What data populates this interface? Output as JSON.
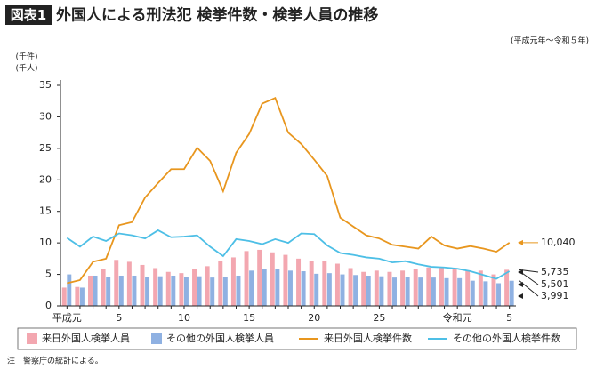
{
  "chart_data": {
    "type": "bar",
    "tag": "図表1",
    "title": "外国人による刑法犯 検挙件数・検挙人員の推移",
    "subtitle": "(平成元年～令和５年)",
    "y_label_lines": [
      "(千件)",
      "(千人)"
    ],
    "note": "注　警察庁の統計による。",
    "categories": [
      "平成元",
      null,
      null,
      null,
      "5",
      null,
      null,
      null,
      null,
      "10",
      null,
      null,
      null,
      null,
      "15",
      null,
      null,
      null,
      null,
      "20",
      null,
      null,
      null,
      null,
      "25",
      null,
      null,
      null,
      null,
      null,
      "令和元",
      null,
      null,
      null,
      "5"
    ],
    "ylim": [
      0,
      35
    ],
    "yticks": [
      0,
      5,
      10,
      15,
      20,
      25,
      30,
      35
    ],
    "grid": false,
    "legend": "bottom",
    "series": [
      {
        "name": "来日外国人検挙人員",
        "type": "bar",
        "color": "#f3a7b0",
        "values": [
          2.9,
          3.0,
          4.8,
          5.9,
          7.3,
          7.0,
          6.5,
          6.0,
          5.4,
          5.2,
          5.9,
          6.3,
          7.2,
          7.7,
          8.7,
          8.9,
          8.5,
          8.1,
          7.5,
          7.1,
          7.2,
          6.7,
          6.0,
          5.4,
          5.6,
          5.4,
          5.6,
          5.8,
          6.1,
          6.0,
          6.0,
          5.6,
          5.6,
          5.0,
          5.735
        ],
        "value_labels": [
          null,
          null,
          null,
          null,
          null,
          null,
          null,
          null,
          null,
          null,
          null,
          null,
          null,
          null,
          null,
          null,
          null,
          null,
          null,
          null,
          null,
          null,
          null,
          null,
          null,
          null,
          null,
          null,
          null,
          null,
          null,
          null,
          null,
          null,
          "5,735"
        ]
      },
      {
        "name": "その他の外国人検挙人員",
        "type": "bar",
        "color": "#8fb1e2",
        "values": [
          5.0,
          2.9,
          4.8,
          4.6,
          4.8,
          4.8,
          4.6,
          4.7,
          4.8,
          4.6,
          4.7,
          4.5,
          4.6,
          4.8,
          5.6,
          5.9,
          5.8,
          5.6,
          5.5,
          5.1,
          5.2,
          5.0,
          4.9,
          4.8,
          4.7,
          4.5,
          4.6,
          4.5,
          4.5,
          4.4,
          4.4,
          4.0,
          3.9,
          3.6,
          3.991
        ],
        "value_labels": [
          null,
          null,
          null,
          null,
          null,
          null,
          null,
          null,
          null,
          null,
          null,
          null,
          null,
          null,
          null,
          null,
          null,
          null,
          null,
          null,
          null,
          null,
          null,
          null,
          null,
          null,
          null,
          null,
          null,
          null,
          null,
          null,
          null,
          null,
          "3,991"
        ]
      },
      {
        "name": "来日外国人検挙件数",
        "type": "line",
        "color": "#e8961e",
        "values": [
          3.6,
          4.1,
          7.0,
          7.5,
          12.8,
          13.3,
          17.2,
          19.5,
          21.7,
          21.7,
          25.1,
          23.0,
          18.2,
          24.3,
          27.3,
          32.1,
          33.0,
          27.5,
          25.7,
          23.2,
          20.6,
          14.0,
          12.6,
          11.2,
          10.7,
          9.7,
          9.4,
          9.1,
          11.0,
          9.6,
          9.1,
          9.5,
          9.1,
          8.6,
          10.04
        ],
        "value_labels": [
          null,
          null,
          null,
          null,
          null,
          null,
          null,
          null,
          null,
          null,
          null,
          null,
          null,
          null,
          null,
          null,
          null,
          null,
          null,
          null,
          null,
          null,
          null,
          null,
          null,
          null,
          null,
          null,
          null,
          null,
          null,
          null,
          null,
          null,
          "10,040"
        ]
      },
      {
        "name": "その他の外国人検挙件数",
        "type": "line",
        "color": "#4dbfe6",
        "values": [
          10.8,
          9.4,
          11.0,
          10.3,
          11.5,
          11.2,
          10.7,
          12.0,
          10.9,
          11.0,
          11.2,
          9.4,
          7.9,
          10.6,
          10.3,
          9.8,
          10.6,
          10.0,
          11.5,
          11.4,
          9.6,
          8.4,
          8.1,
          7.7,
          7.5,
          6.9,
          7.1,
          6.6,
          6.2,
          6.1,
          5.9,
          5.5,
          4.9,
          4.3,
          5.501
        ],
        "value_labels": [
          null,
          null,
          null,
          null,
          null,
          null,
          null,
          null,
          null,
          null,
          null,
          null,
          null,
          null,
          null,
          null,
          null,
          null,
          null,
          null,
          null,
          null,
          null,
          null,
          null,
          null,
          null,
          null,
          null,
          null,
          null,
          null,
          null,
          null,
          "5,501"
        ]
      }
    ]
  }
}
